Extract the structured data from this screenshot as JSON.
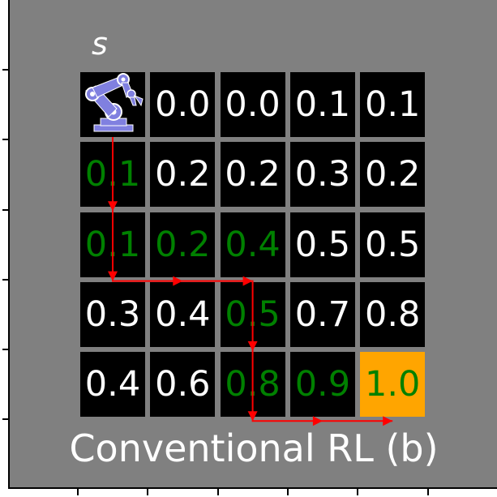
{
  "start_label": "s",
  "caption": "Conventional RL (b)",
  "grid": {
    "rows": [
      [
        {
          "value": "",
          "robot": true
        },
        {
          "value": "0.0"
        },
        {
          "value": "0.0"
        },
        {
          "value": "0.1"
        },
        {
          "value": "0.1"
        }
      ],
      [
        {
          "value": "0.1",
          "path": true
        },
        {
          "value": "0.2"
        },
        {
          "value": "0.2"
        },
        {
          "value": "0.3"
        },
        {
          "value": "0.2"
        }
      ],
      [
        {
          "value": "0.1",
          "path": true
        },
        {
          "value": "0.2",
          "path": true
        },
        {
          "value": "0.4",
          "path": true
        },
        {
          "value": "0.5"
        },
        {
          "value": "0.5"
        }
      ],
      [
        {
          "value": "0.3"
        },
        {
          "value": "0.4"
        },
        {
          "value": "0.5",
          "path": true
        },
        {
          "value": "0.7"
        },
        {
          "value": "0.8"
        }
      ],
      [
        {
          "value": "0.4"
        },
        {
          "value": "0.6"
        },
        {
          "value": "0.8",
          "path": true
        },
        {
          "value": "0.9",
          "path": true
        },
        {
          "value": "1.0",
          "path": true,
          "goal": true
        }
      ]
    ]
  },
  "path": [
    [
      0,
      0
    ],
    [
      1,
      0
    ],
    [
      2,
      0
    ],
    [
      2,
      1
    ],
    [
      2,
      2
    ],
    [
      3,
      2
    ],
    [
      4,
      2
    ],
    [
      4,
      3
    ],
    [
      4,
      4
    ]
  ],
  "colors": {
    "background": "#808080",
    "cell": "#000000",
    "value_text": "#ffffff",
    "path_text": "#008000",
    "goal_cell": "#ffa500",
    "path_line": "#ff0000",
    "robot": "#8080e0"
  },
  "icons": {
    "start": "robot-arm-icon"
  }
}
